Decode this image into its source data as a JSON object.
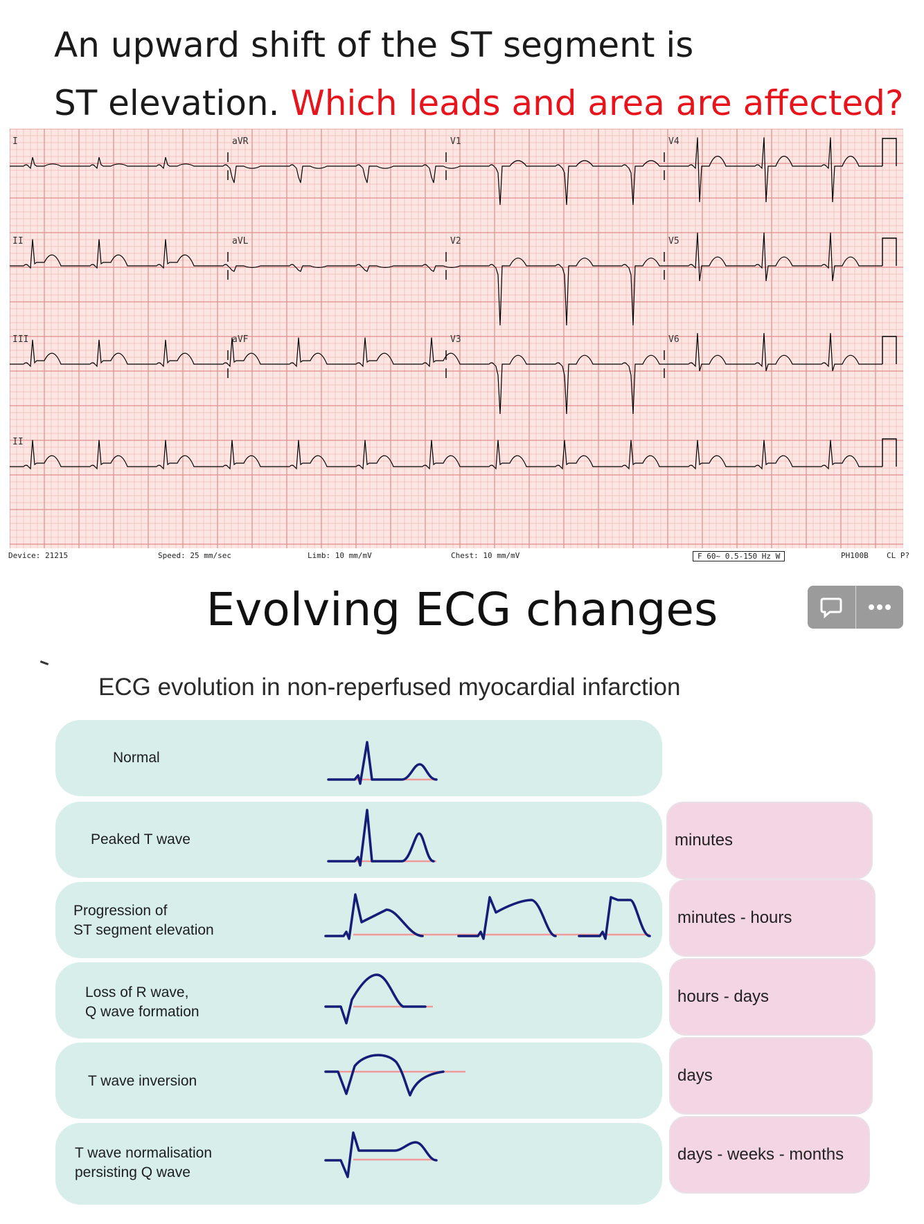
{
  "headline": {
    "line1": "An upward shift of the ST segment is",
    "line2_black": "ST elevation. ",
    "line2_red": "Which leads and area are affected?"
  },
  "ecg": {
    "lead_labels": [
      [
        "I",
        "aVR",
        "V1",
        "V4"
      ],
      [
        "II",
        "aVL",
        "V2",
        "V5"
      ],
      [
        "III",
        "aVF",
        "V3",
        "V6"
      ],
      [
        "II"
      ]
    ],
    "footer": {
      "device": "Device: 21215",
      "speed": "Speed: 25 mm/sec",
      "limb": "Limb: 10 mm/mV",
      "chest": "Chest: 10 mm/mV",
      "filter": "F 60~ 0.5-150 Hz W",
      "model": "PH100B",
      "extra": "CL P?"
    },
    "colors": {
      "paper": "#fbe6e3",
      "grid_minor": "#f2b9b4",
      "grid_major": "#df8d8a",
      "trace": "#000000"
    }
  },
  "section_title": "Evolving ECG changes",
  "toolbar": {
    "comment_icon": "comment-icon",
    "more_icon": "more-icon"
  },
  "diagram": {
    "subtitle": "ECG evolution in non-reperfused myocardial infarction",
    "stages": [
      {
        "label": [
          "Normal"
        ],
        "time": ""
      },
      {
        "label": [
          "Peaked T wave"
        ],
        "time": "minutes"
      },
      {
        "label": [
          "Progression of",
          "ST segment elevation"
        ],
        "time": "minutes - hours"
      },
      {
        "label": [
          "Loss of R wave,",
          "Q wave formation"
        ],
        "time": "hours - days"
      },
      {
        "label": [
          "T wave inversion"
        ],
        "time": "days"
      },
      {
        "label": [
          "T wave normalisation",
          "persisting Q wave"
        ],
        "time": "days - weeks - months"
      }
    ],
    "colors": {
      "row_bg": "#d7eeeb",
      "time_bg": "#f3d5e3",
      "trace": "#141e78",
      "baseline": "#f29a9a"
    }
  }
}
